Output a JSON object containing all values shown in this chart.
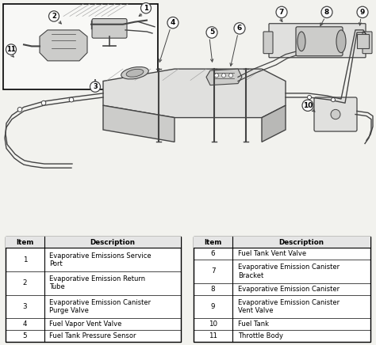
{
  "bg_color": "#f2f2ee",
  "line_color": "#444444",
  "fill_light": "#e0e0de",
  "fill_mid": "#ccccca",
  "fill_dark": "#b8b8b6",
  "white": "#ffffff",
  "table1": {
    "headers": [
      "Item",
      "Description"
    ],
    "rows": [
      [
        "1",
        "Evaporative Emissions Service\nPort"
      ],
      [
        "2",
        "Evaporative Emission Return\nTube"
      ],
      [
        "3",
        "Evaporative Emission Canister\nPurge Valve"
      ],
      [
        "4",
        "Fuel Vapor Vent Valve"
      ],
      [
        "5",
        "Fuel Tank Pressure Sensor"
      ]
    ]
  },
  "table2": {
    "headers": [
      "Item",
      "Description"
    ],
    "rows": [
      [
        "6",
        "Fuel Tank Vent Valve"
      ],
      [
        "7",
        "Evaporative Emission Canister\nBracket"
      ],
      [
        "8",
        "Evaporative Emission Canister"
      ],
      [
        "9",
        "Evaporative Emission Canister\nVent Valve"
      ],
      [
        "10",
        "Fuel Tank"
      ],
      [
        "11",
        "Throttle Body"
      ]
    ]
  }
}
